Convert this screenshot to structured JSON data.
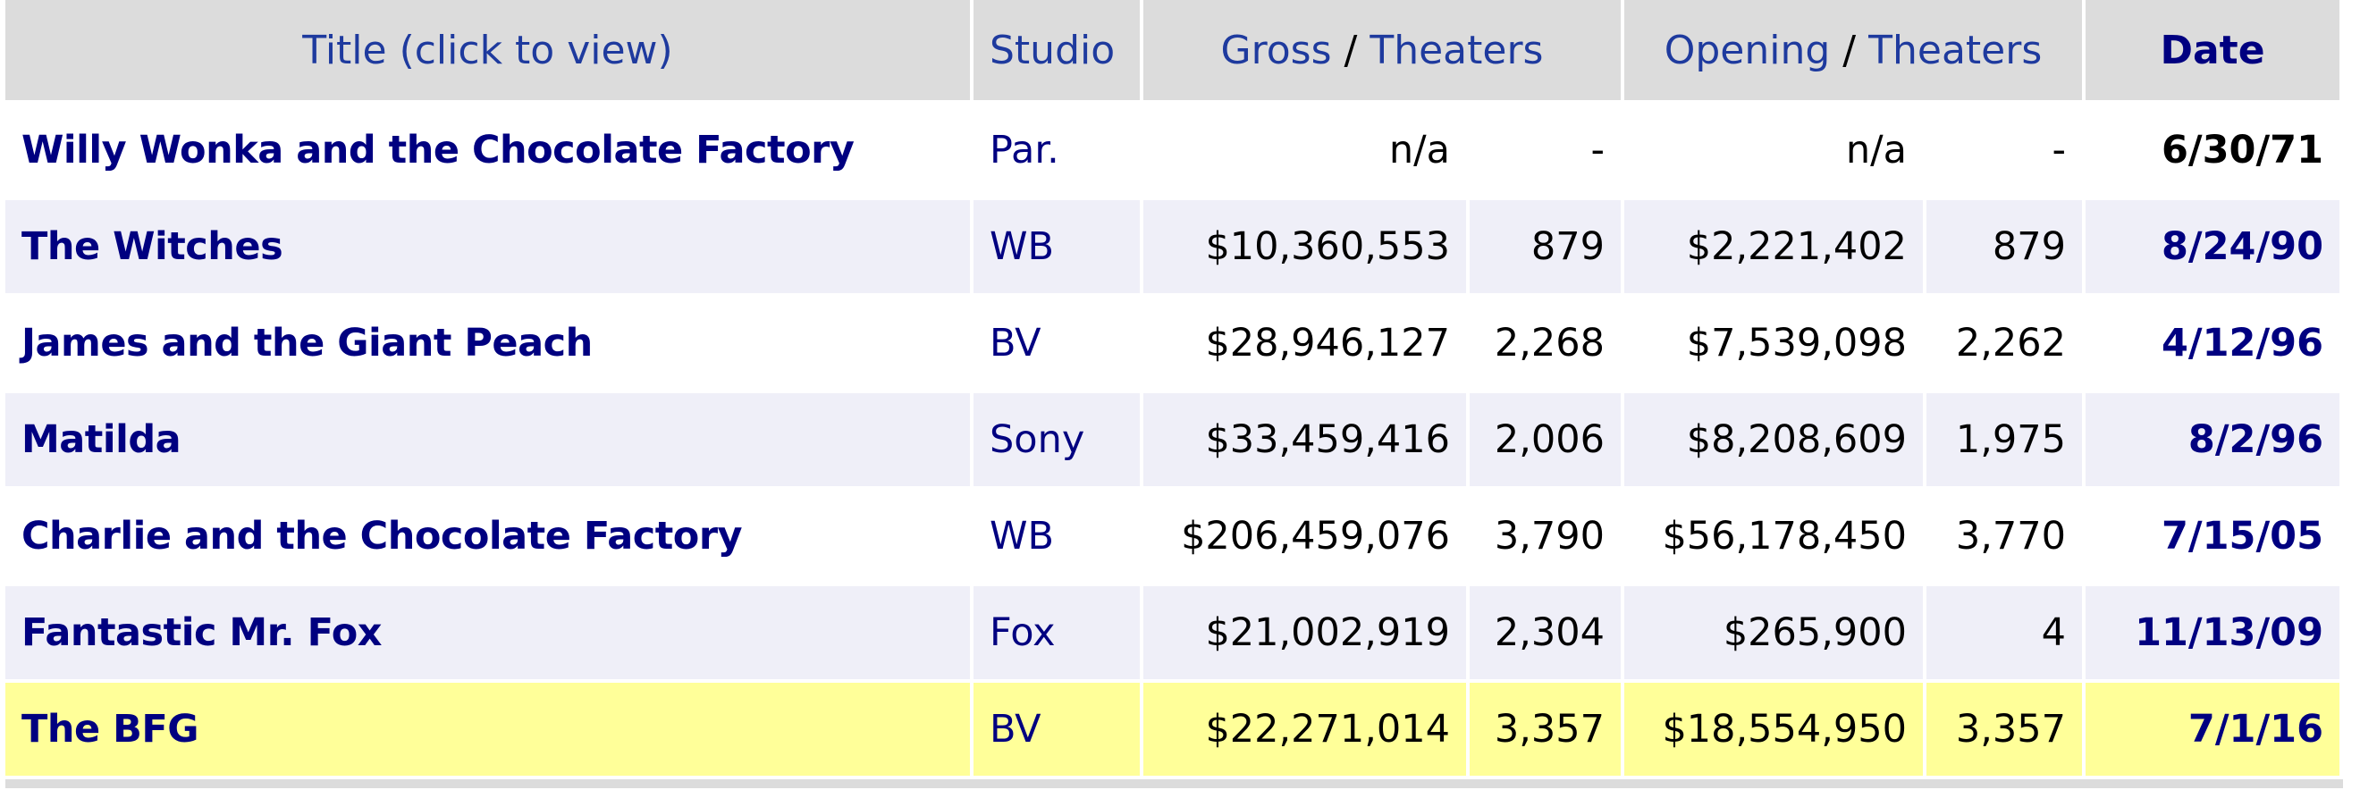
{
  "table": {
    "headers": {
      "title": "Title (click to view)",
      "studio": "Studio",
      "gross": [
        "Gross",
        "/",
        "Theaters"
      ],
      "opening": [
        "Opening",
        "/",
        "Theaters"
      ],
      "date": "Date"
    },
    "rows": [
      [
        "Willy Wonka and the Chocolate Factory",
        "Par.",
        "n/a",
        "-",
        "n/a",
        "-",
        "6/30/71"
      ],
      [
        "The Witches",
        "WB",
        "$10,360,553",
        "879",
        "$2,221,402",
        "879",
        "8/24/90"
      ],
      [
        "James and the Giant Peach",
        "BV",
        "$28,946,127",
        "2,268",
        "$7,539,098",
        "2,262",
        "4/12/96"
      ],
      [
        "Matilda",
        "Sony",
        "$33,459,416",
        "2,006",
        "$8,208,609",
        "1,975",
        "8/2/96"
      ],
      [
        "Charlie and the Chocolate Factory",
        "WB",
        "$206,459,076",
        "3,790",
        "$56,178,450",
        "3,770",
        "7/15/05"
      ],
      [
        "Fantastic Mr. Fox",
        "Fox",
        "$21,002,919",
        "2,304",
        "$265,900",
        "4",
        "11/13/09"
      ],
      [
        "The BFG",
        "BV",
        "$22,271,014",
        "3,357",
        "$18,554,950",
        "3,357",
        "7/1/16"
      ]
    ]
  }
}
